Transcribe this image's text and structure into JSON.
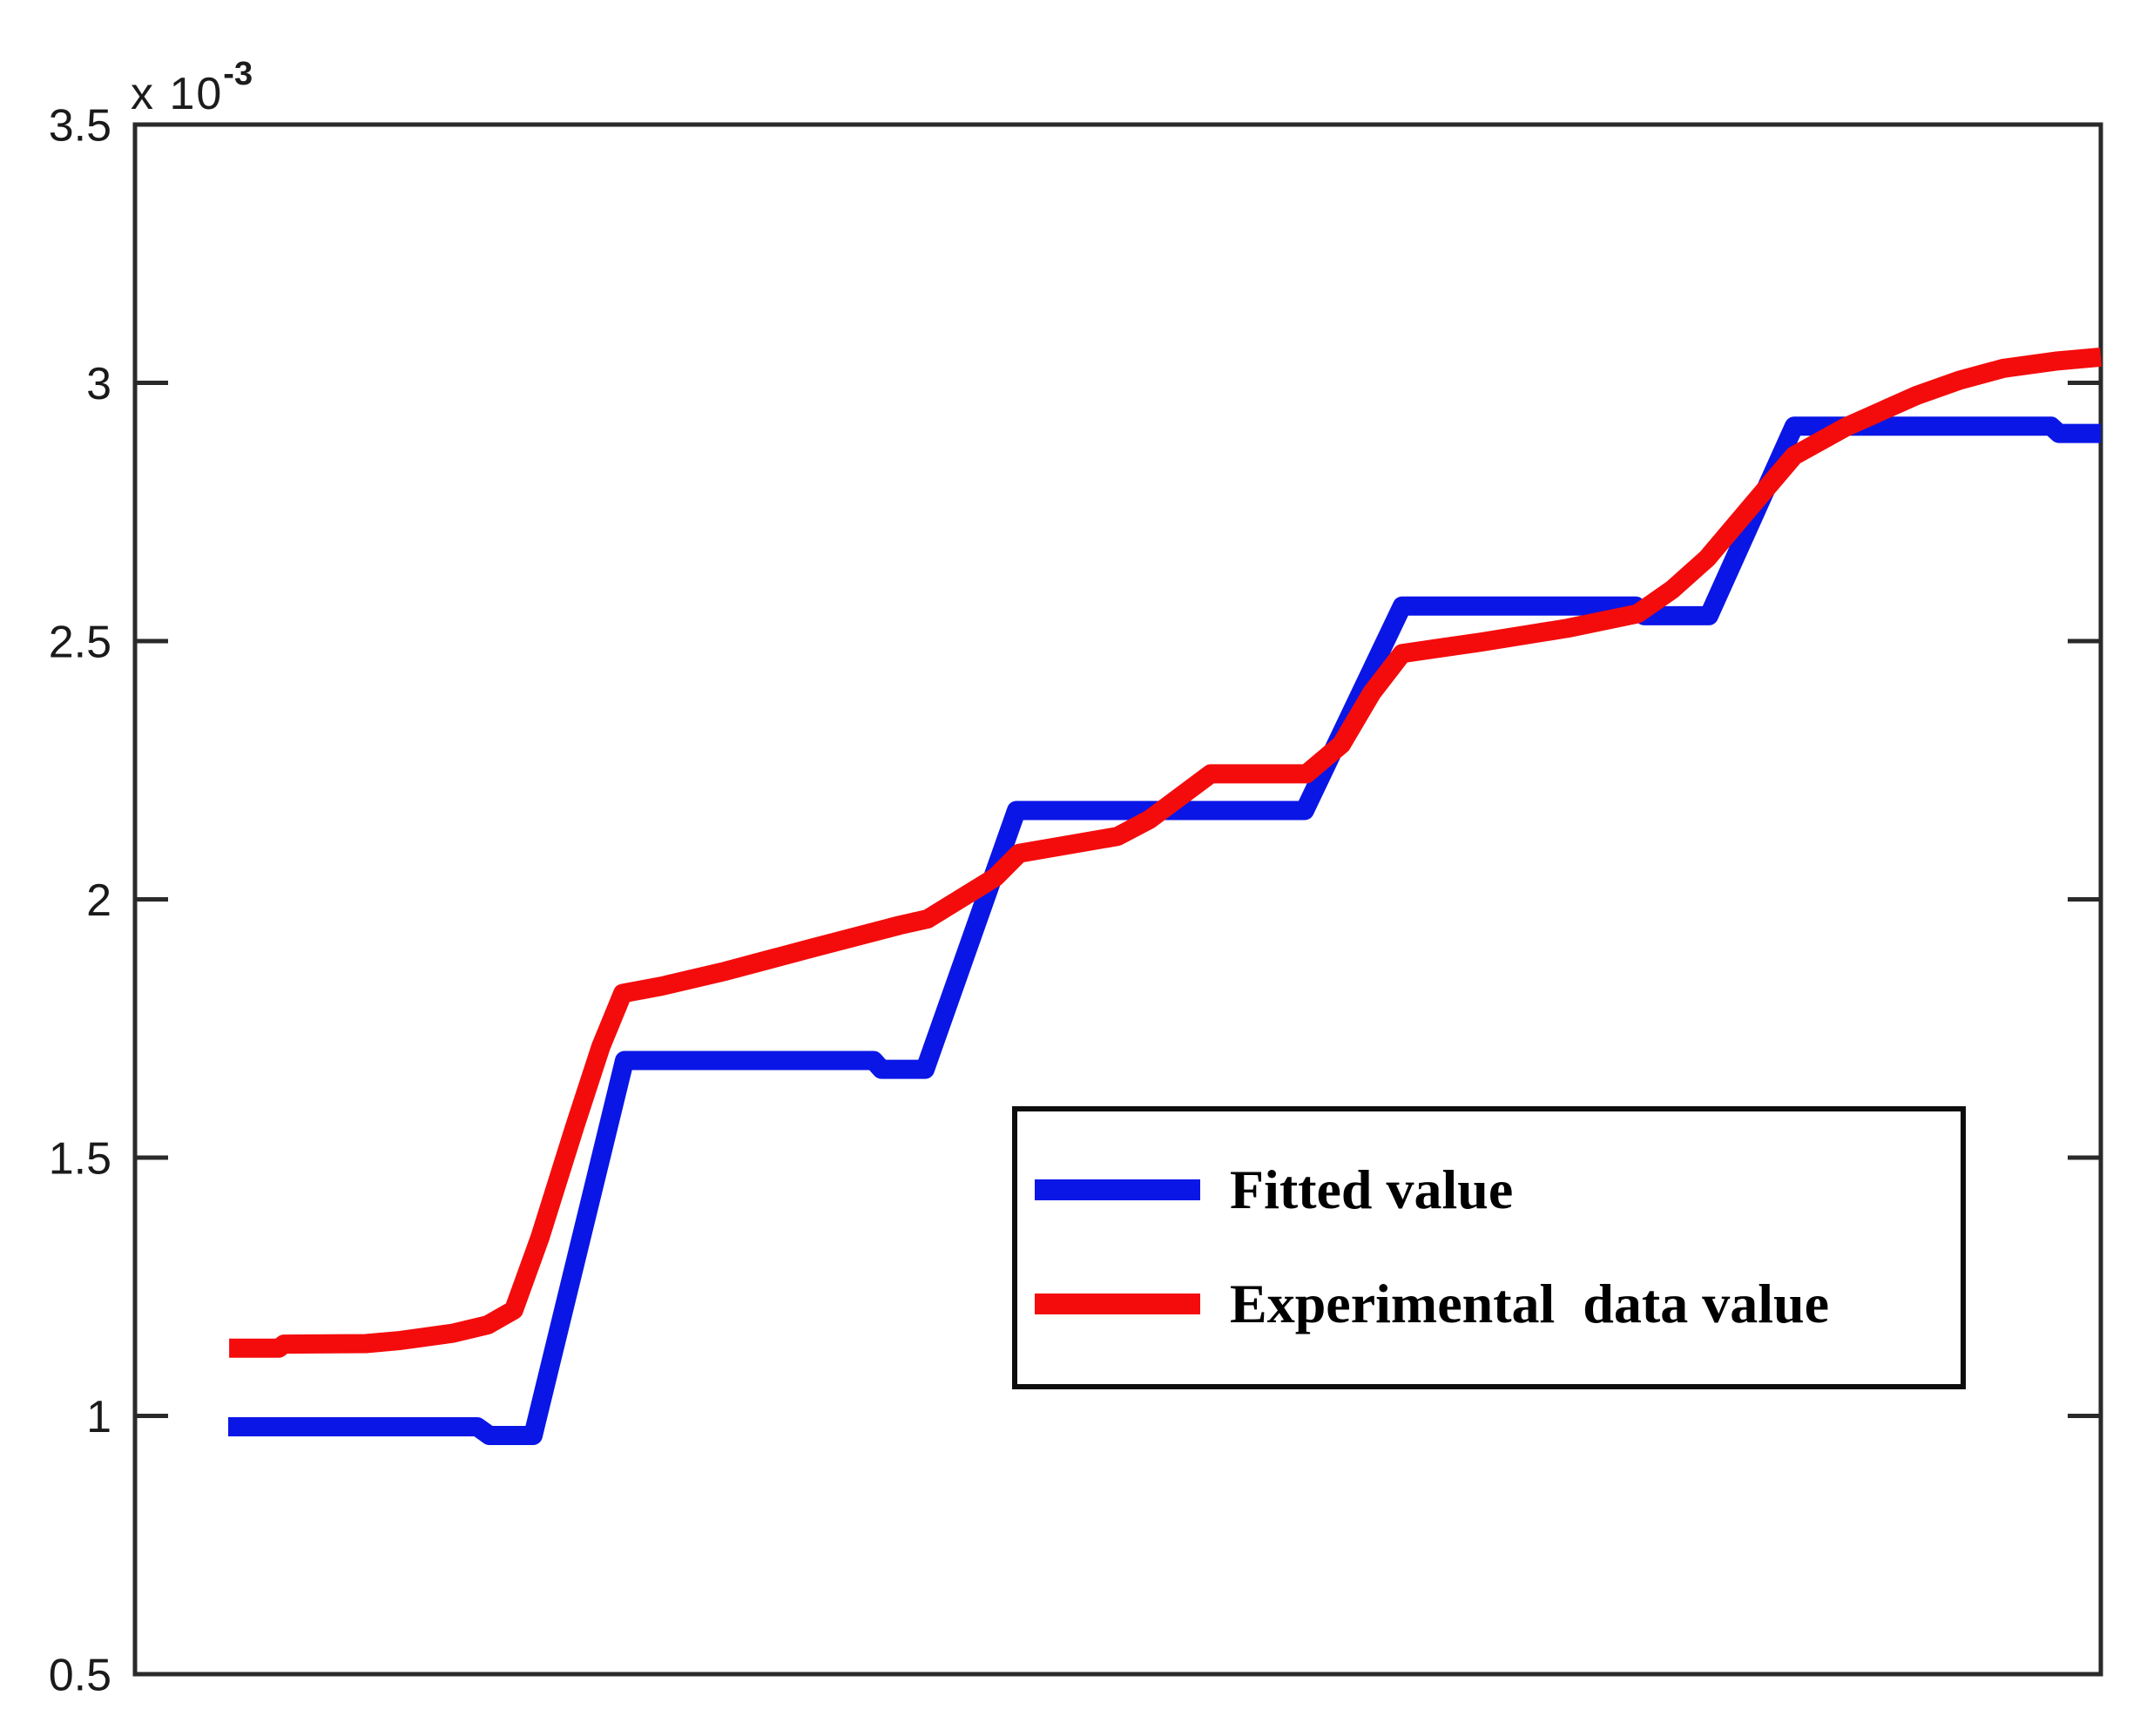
{
  "figure": {
    "background": "#ffffff",
    "axis_color": "#2a2a2a",
    "tick_label_color": "#1a1a1a"
  },
  "chart_data": {
    "type": "line",
    "title": "",
    "xlabel": "",
    "ylabel": "",
    "y_exponent_base": "x 10",
    "y_exponent_power": "-3",
    "ylim": [
      0.5,
      3.5
    ],
    "grid": false,
    "legend_position": "middle-right-box",
    "yticks": [
      {
        "value": 0.5,
        "label": "0.5"
      },
      {
        "value": 1.0,
        "label": "1"
      },
      {
        "value": 1.5,
        "label": "1.5"
      },
      {
        "value": 2.0,
        "label": "2"
      },
      {
        "value": 2.5,
        "label": "2.5"
      },
      {
        "value": 3.0,
        "label": "3"
      },
      {
        "value": 3.5,
        "label": "3.5"
      }
    ],
    "x_axis_note": "no x tick marks or labels; x stored as 0-1 fraction of plot width",
    "y_unit_note": "y values in units of 1e-3",
    "series": [
      {
        "name": "Fitted value",
        "color": "#0a16e6",
        "shape": "step",
        "points": [
          [
            0.0474,
            0.979
          ],
          [
            0.1741,
            0.979
          ],
          [
            0.1803,
            0.962
          ],
          [
            0.2025,
            0.962
          ],
          [
            0.249,
            1.688
          ],
          [
            0.3757,
            1.688
          ],
          [
            0.3797,
            1.671
          ],
          [
            0.4019,
            1.671
          ],
          [
            0.4484,
            2.172
          ],
          [
            0.595,
            2.172
          ],
          [
            0.6446,
            2.568
          ],
          [
            0.7634,
            2.568
          ],
          [
            0.7678,
            2.549
          ],
          [
            0.8006,
            2.549
          ],
          [
            0.844,
            2.916
          ],
          [
            0.9747,
            2.916
          ],
          [
            0.9787,
            2.902
          ],
          [
            1.0,
            2.902
          ]
        ]
      },
      {
        "name": "Experimental  data value",
        "color": "#f40c0c",
        "shape": "ramp",
        "points": [
          [
            0.0479,
            1.131
          ],
          [
            0.0731,
            1.131
          ],
          [
            0.0758,
            1.139
          ],
          [
            0.1174,
            1.14
          ],
          [
            0.1351,
            1.146
          ],
          [
            0.1617,
            1.16
          ],
          [
            0.1794,
            1.176
          ],
          [
            0.1927,
            1.205
          ],
          [
            0.206,
            1.345
          ],
          [
            0.2237,
            1.56
          ],
          [
            0.237,
            1.715
          ],
          [
            0.2481,
            1.818
          ],
          [
            0.268,
            1.832
          ],
          [
            0.3004,
            1.861
          ],
          [
            0.3447,
            1.906
          ],
          [
            0.389,
            1.95
          ],
          [
            0.4032,
            1.962
          ],
          [
            0.4377,
            2.043
          ],
          [
            0.4497,
            2.089
          ],
          [
            0.4998,
            2.122
          ],
          [
            0.5162,
            2.155
          ],
          [
            0.5472,
            2.243
          ],
          [
            0.5959,
            2.243
          ],
          [
            0.6137,
            2.3
          ],
          [
            0.6292,
            2.4
          ],
          [
            0.6446,
            2.476
          ],
          [
            0.6845,
            2.498
          ],
          [
            0.7288,
            2.525
          ],
          [
            0.7643,
            2.553
          ],
          [
            0.782,
            2.6
          ],
          [
            0.7997,
            2.66
          ],
          [
            0.8219,
            2.76
          ],
          [
            0.844,
            2.859
          ],
          [
            0.8706,
            2.915
          ],
          [
            0.906,
            2.975
          ],
          [
            0.9282,
            3.005
          ],
          [
            0.9504,
            3.028
          ],
          [
            0.977,
            3.042
          ],
          [
            1.0,
            3.05
          ]
        ]
      }
    ]
  }
}
